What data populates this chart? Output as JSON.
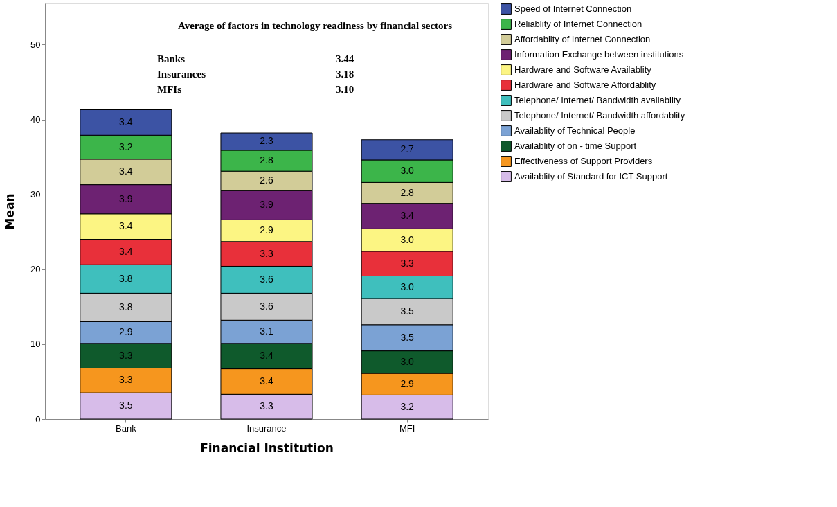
{
  "chart_data": {
    "type": "bar",
    "stacked": true,
    "xlabel": "Financial Institution",
    "ylabel": "Mean",
    "categories": [
      "Bank",
      "Insurance",
      "MFI"
    ],
    "ylim": [
      0,
      55.5
    ],
    "yticks": [
      0,
      10,
      20,
      30,
      40,
      50
    ],
    "grid": false,
    "legend": "right",
    "annotations": [
      "Average of factors in technology readiness by financial sectors",
      "Banks",
      "3.44",
      "Insurances",
      "3.18",
      "MFIs",
      "3.10"
    ],
    "series": [
      {
        "name": "Availablity of Standard for ICT Support",
        "color": "#d7bce9",
        "values": [
          3.5,
          3.3,
          3.2
        ],
        "value_labels": [
          "3.5",
          "3.3",
          "3.2"
        ]
      },
      {
        "name": "Effectiveness of Support Providers",
        "color": "#f6961e",
        "values": [
          3.3,
          3.4,
          2.9
        ],
        "value_labels": [
          "3.3",
          "3.4",
          "2.9"
        ]
      },
      {
        "name": "Availablity of on - time Support",
        "color": "#0f5a2c",
        "values": [
          3.3,
          3.4,
          3.0
        ],
        "value_labels": [
          "3.3",
          "3.4",
          "3.0"
        ]
      },
      {
        "name": "Availablity of Technical People",
        "color": "#7ba2d4",
        "values": [
          2.9,
          3.1,
          3.5
        ],
        "value_labels": [
          "2.9",
          "3.1",
          "3.5"
        ]
      },
      {
        "name": "Telephone/ Internet/ Bandwidth affordablity",
        "color": "#c9c9c9",
        "values": [
          3.8,
          3.6,
          3.5
        ],
        "value_labels": [
          "3.8",
          "3.6",
          "3.5"
        ]
      },
      {
        "name": "Telephone/ Internet/ Bandwidth availablity",
        "color": "#3fbfbd",
        "values": [
          3.8,
          3.6,
          3.0
        ],
        "value_labels": [
          "3.8",
          "3.6",
          "3.0"
        ]
      },
      {
        "name": "Hardware and Software Affordablity",
        "color": "#e8303a",
        "values": [
          3.4,
          3.3,
          3.3
        ],
        "value_labels": [
          "3.4",
          "3.3",
          "3.3"
        ]
      },
      {
        "name": "Hardware and Software Availablity",
        "color": "#fcf583",
        "values": [
          3.4,
          2.9,
          3.0
        ],
        "value_labels": [
          "3.4",
          "2.9",
          "3.0"
        ]
      },
      {
        "name": "Information Exchange between institutions",
        "color": "#6d2272",
        "values": [
          3.9,
          3.9,
          3.4
        ],
        "value_labels": [
          "3.9",
          "3.9",
          "3.4"
        ]
      },
      {
        "name": "Affordablity of Internet Connection",
        "color": "#d2cc98",
        "values": [
          3.4,
          2.6,
          2.8
        ],
        "value_labels": [
          "3.4",
          "2.6",
          "2.8"
        ]
      },
      {
        "name": "Reliablity of Internet Connection",
        "color": "#3cb54a",
        "values": [
          3.2,
          2.8,
          3.0
        ],
        "value_labels": [
          "3.2",
          "2.8",
          "3.0"
        ]
      },
      {
        "name": "Speed of Internet Connection",
        "color": "#3c53a4",
        "values": [
          3.4,
          2.3,
          2.7
        ],
        "value_labels": [
          "3.4",
          "2.3",
          "2.7"
        ]
      }
    ]
  }
}
